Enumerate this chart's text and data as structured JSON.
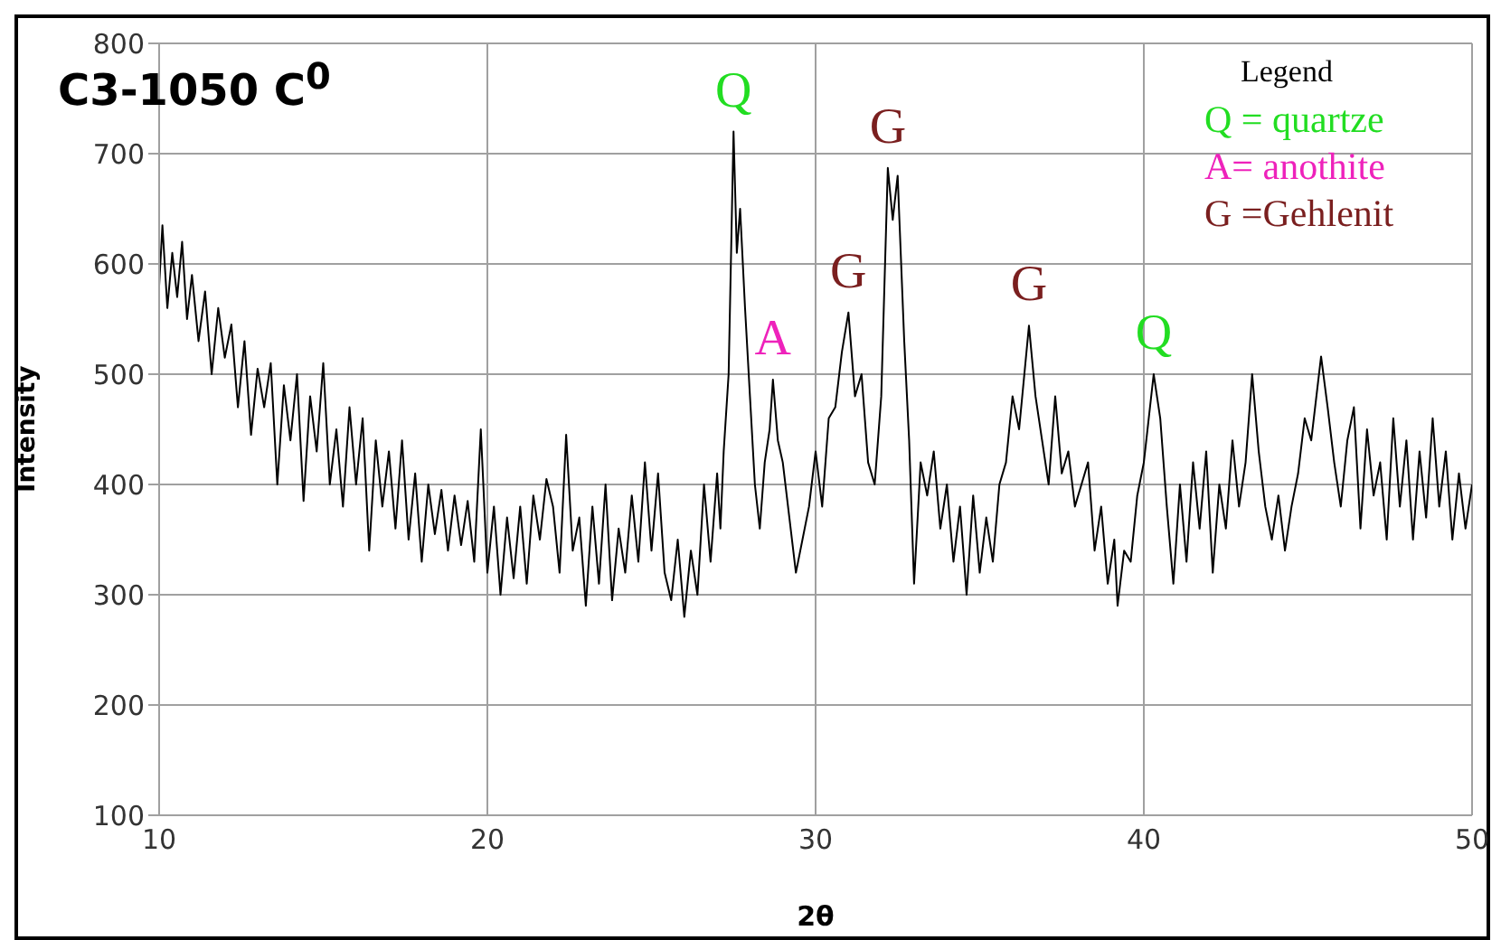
{
  "chart_data": {
    "type": "line",
    "title": "C3-1050 C$^{0}$",
    "xlabel": "2θ",
    "ylabel": "Intensity",
    "xlim": [
      10,
      50
    ],
    "xticks": [
      10,
      20,
      30,
      40,
      50
    ],
    "ylim": [
      100,
      800
    ],
    "yticks": [
      100,
      200,
      300,
      400,
      500,
      600,
      700,
      800
    ],
    "grid": true,
    "marker": "none",
    "line_style": "solid",
    "x": [
      10.0,
      10.1,
      10.25,
      10.4,
      10.55,
      10.7,
      10.85,
      11.0,
      11.2,
      11.4,
      11.6,
      11.8,
      12.0,
      12.2,
      12.4,
      12.6,
      12.8,
      13.0,
      13.2,
      13.4,
      13.6,
      13.8,
      14.0,
      14.2,
      14.4,
      14.6,
      14.8,
      15.0,
      15.2,
      15.4,
      15.6,
      15.8,
      16.0,
      16.2,
      16.4,
      16.6,
      16.8,
      17.0,
      17.2,
      17.4,
      17.6,
      17.8,
      18.0,
      18.2,
      18.4,
      18.6,
      18.8,
      19.0,
      19.2,
      19.4,
      19.6,
      19.8,
      20.0,
      20.2,
      20.4,
      20.6,
      20.8,
      21.0,
      21.2,
      21.4,
      21.6,
      21.8,
      22.0,
      22.2,
      22.4,
      22.6,
      22.8,
      23.0,
      23.2,
      23.4,
      23.6,
      23.8,
      24.0,
      24.2,
      24.4,
      24.6,
      24.8,
      25.0,
      25.2,
      25.4,
      25.6,
      25.8,
      26.0,
      26.2,
      26.4,
      26.6,
      26.8,
      27.0,
      27.1,
      27.2,
      27.35,
      27.5,
      27.6,
      27.7,
      27.85,
      28.0,
      28.15,
      28.3,
      28.45,
      28.6,
      28.7,
      28.85,
      29.0,
      29.2,
      29.4,
      29.6,
      29.8,
      30.0,
      30.2,
      30.4,
      30.6,
      30.8,
      31.0,
      31.2,
      31.4,
      31.6,
      31.8,
      32.0,
      32.2,
      32.35,
      32.5,
      32.7,
      32.85,
      33.0,
      33.2,
      33.4,
      33.6,
      33.8,
      34.0,
      34.2,
      34.4,
      34.6,
      34.8,
      35.0,
      35.2,
      35.4,
      35.6,
      35.8,
      36.0,
      36.2,
      36.5,
      36.7,
      36.9,
      37.1,
      37.3,
      37.5,
      37.7,
      37.9,
      38.1,
      38.3,
      38.5,
      38.7,
      38.9,
      39.1,
      39.2,
      39.4,
      39.6,
      39.8,
      40.0,
      40.3,
      40.5,
      40.7,
      40.9,
      41.1,
      41.3,
      41.5,
      41.7,
      41.9,
      42.1,
      42.3,
      42.5,
      42.7,
      42.9,
      43.1,
      43.3,
      43.5,
      43.7,
      43.9,
      44.1,
      44.3,
      44.5,
      44.7,
      44.9,
      45.1,
      45.4,
      45.6,
      45.8,
      46.0,
      46.2,
      46.4,
      46.6,
      46.8,
      47.0,
      47.2,
      47.4,
      47.6,
      47.8,
      48.0,
      48.2,
      48.4,
      48.6,
      48.8,
      49.0,
      49.2,
      49.4,
      49.6,
      49.8,
      50.0
    ],
    "series": [
      {
        "color": "#000000",
        "values": [
          580,
          635,
          560,
          610,
          570,
          620,
          550,
          590,
          530,
          575,
          500,
          560,
          515,
          545,
          470,
          530,
          445,
          505,
          470,
          510,
          400,
          490,
          440,
          500,
          385,
          480,
          430,
          510,
          400,
          450,
          380,
          470,
          400,
          460,
          340,
          440,
          380,
          430,
          360,
          440,
          350,
          410,
          330,
          400,
          355,
          395,
          340,
          390,
          345,
          385,
          330,
          450,
          320,
          380,
          300,
          370,
          315,
          380,
          310,
          390,
          350,
          405,
          380,
          320,
          445,
          340,
          370,
          290,
          380,
          310,
          400,
          295,
          360,
          320,
          390,
          330,
          420,
          340,
          410,
          320,
          295,
          350,
          280,
          340,
          300,
          400,
          330,
          410,
          360,
          430,
          500,
          720,
          610,
          650,
          560,
          480,
          400,
          360,
          420,
          450,
          495,
          440,
          420,
          370,
          320,
          350,
          380,
          430,
          380,
          460,
          470,
          520,
          556,
          480,
          500,
          420,
          400,
          480,
          687,
          640,
          680,
          530,
          440,
          310,
          420,
          390,
          430,
          360,
          400,
          330,
          380,
          300,
          390,
          320,
          370,
          330,
          400,
          420,
          480,
          450,
          544,
          480,
          440,
          400,
          480,
          410,
          430,
          380,
          400,
          420,
          340,
          380,
          310,
          350,
          290,
          340,
          330,
          390,
          420,
          500,
          460,
          380,
          310,
          400,
          330,
          420,
          360,
          430,
          320,
          400,
          360,
          440,
          380,
          420,
          500,
          430,
          380,
          350,
          390,
          340,
          380,
          410,
          460,
          440,
          516,
          470,
          420,
          380,
          440,
          470,
          360,
          450,
          390,
          420,
          350,
          460,
          380,
          440,
          350,
          430,
          370,
          460,
          380,
          430,
          350,
          410,
          360,
          400
        ]
      }
    ],
    "annotations": [
      {
        "text": "Q",
        "x": 27.5,
        "y": 720
      },
      {
        "text": "A",
        "x": 28.7,
        "y": 495
      },
      {
        "text": "G",
        "x": 31.0,
        "y": 556
      },
      {
        "text": "G",
        "x": 32.2,
        "y": 687
      },
      {
        "text": "G",
        "x": 36.5,
        "y": 544
      },
      {
        "text": "Q",
        "x": 40.3,
        "y": 500
      },
      "Legend",
      "Q = quartze",
      "A= anothite",
      "G =Gehlenit"
    ]
  }
}
